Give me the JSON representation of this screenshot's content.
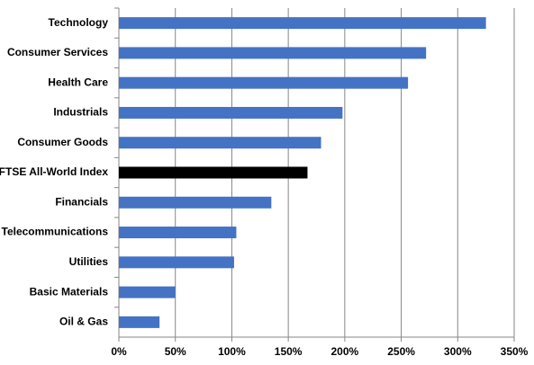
{
  "chart_data": {
    "type": "hbar",
    "categories": [
      "Technology",
      "Consumer Services",
      "Health Care",
      "Industrials",
      "Consumer Goods",
      "FTSE All-World Index",
      "Financials",
      "Telecommunications",
      "Utilities",
      "Basic Materials",
      "Oil & Gas"
    ],
    "values": [
      325,
      272,
      256,
      198,
      179,
      167,
      135,
      104,
      102,
      50,
      36
    ],
    "colors": [
      "#4472c4",
      "#4472c4",
      "#4472c4",
      "#4472c4",
      "#4472c4",
      "#000000",
      "#4472c4",
      "#4472c4",
      "#4472c4",
      "#4472c4",
      "#4472c4"
    ],
    "xlim": [
      0,
      350
    ],
    "xticks": [
      {
        "value": 0,
        "label": "0%"
      },
      {
        "value": 50,
        "label": "50%"
      },
      {
        "value": 100,
        "label": "100%"
      },
      {
        "value": 150,
        "label": "150%"
      },
      {
        "value": 200,
        "label": "200%"
      },
      {
        "value": 250,
        "label": "250%"
      },
      {
        "value": 300,
        "label": "300%"
      },
      {
        "value": 350,
        "label": "350%"
      }
    ],
    "grid": true
  }
}
